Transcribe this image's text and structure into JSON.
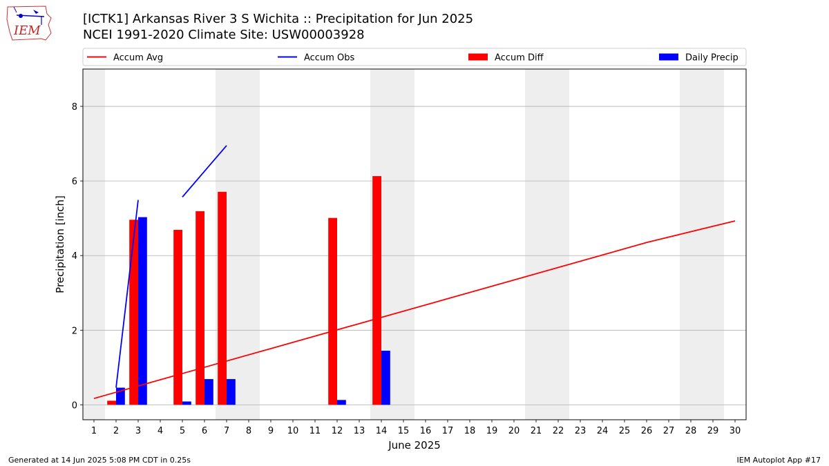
{
  "header": {
    "title_line1": "[ICTK1] Arkansas River 3 S Wichita :: Precipitation for Jun 2025",
    "title_line2": "NCEI 1991-2020 Climate Site: USW00003928",
    "logo_text": "IEM"
  },
  "footer": {
    "generated": "Generated at 14 Jun 2025 5:08 PM CDT in 0.25s",
    "app": "IEM Autoplot App #17"
  },
  "chart_data": {
    "type": "bar",
    "xlabel": "June 2025",
    "ylabel": "Precipitation [inch]",
    "xlim": [
      0.5,
      30.5
    ],
    "ylim": [
      -0.4,
      9.0
    ],
    "xticks": [
      1,
      2,
      3,
      4,
      5,
      6,
      7,
      8,
      9,
      10,
      11,
      12,
      13,
      14,
      15,
      16,
      17,
      18,
      19,
      20,
      21,
      22,
      23,
      24,
      25,
      26,
      27,
      28,
      29,
      30
    ],
    "yticks": [
      0,
      2,
      4,
      6,
      8
    ],
    "grid": "horizontal",
    "legend_placement": "top",
    "weekend_shading": [
      [
        0.5,
        1.5
      ],
      [
        6.5,
        8.5
      ],
      [
        13.5,
        15.5
      ],
      [
        20.5,
        22.5
      ],
      [
        27.5,
        29.5
      ]
    ],
    "legend": [
      {
        "label": "Accum Avg",
        "kind": "line",
        "color": "#ff0000"
      },
      {
        "label": "Accum Obs",
        "kind": "line",
        "color": "#0000ff"
      },
      {
        "label": "Accum Diff",
        "kind": "bar",
        "color": "#ff0000"
      },
      {
        "label": "Daily Precip",
        "kind": "bar",
        "color": "#0000ff"
      }
    ],
    "series": [
      {
        "name": "Accum Avg",
        "kind": "line",
        "color": "#ff0000",
        "x": [
          1,
          26,
          30
        ],
        "y": [
          0.17,
          4.35,
          4.93
        ]
      },
      {
        "name": "Accum Obs",
        "kind": "line",
        "color": "#0000ff",
        "segments": [
          {
            "x": [
              2,
              3
            ],
            "y": [
              0.46,
              5.49
            ]
          },
          {
            "x": [
              5,
              7
            ],
            "y": [
              5.57,
              6.95
            ]
          }
        ]
      },
      {
        "name": "Accum Diff",
        "kind": "bar",
        "color": "#ff0000",
        "x": [
          2,
          3,
          5,
          6,
          7,
          12,
          14
        ],
        "y": [
          0.11,
          4.96,
          4.69,
          5.19,
          5.71,
          5.01,
          6.13
        ]
      },
      {
        "name": "Daily Precip",
        "kind": "bar",
        "color": "#0000ff",
        "x": [
          2,
          3,
          5,
          6,
          7,
          12,
          14
        ],
        "y": [
          0.46,
          5.03,
          0.09,
          0.69,
          0.69,
          0.13,
          1.45
        ]
      }
    ]
  }
}
